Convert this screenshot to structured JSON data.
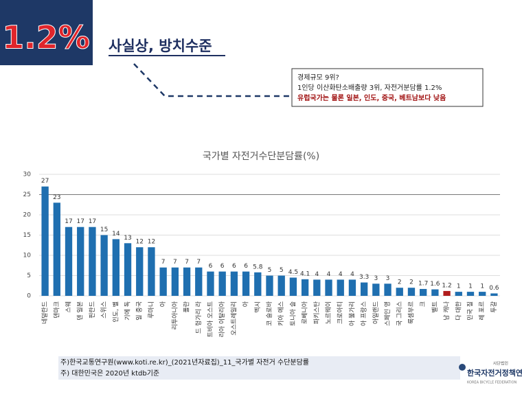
{
  "header": {
    "badge": "1.2%",
    "headline": "사실상, 방치수준"
  },
  "callout": {
    "lines": [
      "경제규모 9위?",
      "1인당 이산화탄소배출량 3위, 자전거분담률 1.2%",
      "유럽국가는 물론 일본, 인도, 중국, 베트남보다 낮음"
    ]
  },
  "chart_data": {
    "type": "bar",
    "title": "국가별 자전거수단분담률(%)",
    "categories": [
      "네덜란드",
      "덴마크",
      "스웨",
      "덴 일본",
      "핀란드",
      "스위스",
      "인도, 벨",
      "기에 독",
      "일 중국",
      "루마니",
      "아",
      "리투아니아",
      "폴란",
      "드 헝가리 라",
      "트비아 오스트",
      "리아 이탈리아",
      "오스트레일리",
      "아",
      "멕시",
      "코 슬로바",
      "키아 에스",
      "토니아 슬",
      "로베니아",
      "파키스탄",
      "노르웨이",
      "크로아티",
      "아 불가리",
      "아 프랑스",
      "아일랜드",
      "스페인 영",
      "국 그리스",
      "룩셈부르",
      "크",
      "벨트",
      "남 캐나",
      "다 대한",
      "민국 칠",
      "레 포르",
      "투갈"
    ],
    "values": [
      27,
      23,
      17,
      17,
      17,
      15,
      14,
      13,
      12,
      12,
      7,
      7,
      7,
      7,
      6,
      6,
      6,
      6,
      5.8,
      5,
      5,
      4.5,
      4.1,
      4,
      4,
      4,
      4,
      3.3,
      3,
      3,
      2,
      2,
      1.7,
      1.6,
      1.2,
      1,
      1,
      1,
      0.6
    ],
    "color": "#1f6fb0",
    "highlight_color": "#b01c1c",
    "highlight_category": "남 캐나",
    "ylim": [
      0,
      30
    ],
    "yticks": [
      0,
      5,
      10,
      15,
      20,
      25,
      30
    ],
    "grid": true
  },
  "footnotes": [
    "주)한국교통연구원(www.koti.re.kr)_(2021년자료집)_11_국가별 자전거 수단분담률",
    "주) 대한민국은 2020년 ktdb기준"
  ],
  "logo": {
    "small": "사단법인",
    "name": "한국자전거정책연합",
    "sub": "KOREA BICYCLE FEDERATION"
  }
}
